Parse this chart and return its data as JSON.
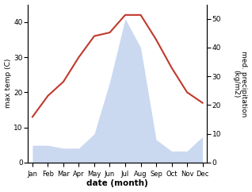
{
  "months": [
    "Jan",
    "Feb",
    "Mar",
    "Apr",
    "May",
    "Jun",
    "Jul",
    "Aug",
    "Sep",
    "Oct",
    "Nov",
    "Dec"
  ],
  "temperature": [
    13,
    19,
    23,
    30,
    36,
    37,
    42,
    42,
    35,
    27,
    20,
    17
  ],
  "precipitation": [
    6,
    6,
    5,
    5,
    10,
    28,
    50,
    40,
    8,
    4,
    4,
    9
  ],
  "temp_color": "#c0392b",
  "precip_color": "#aec6e8",
  "precip_fill_alpha": 0.65,
  "ylim_left": [
    0,
    45
  ],
  "ylim_right": [
    0,
    55
  ],
  "yticks_left": [
    0,
    10,
    20,
    30,
    40
  ],
  "yticks_right": [
    0,
    10,
    20,
    30,
    40,
    50
  ],
  "xlabel": "date (month)",
  "ylabel_left": "max temp (C)",
  "ylabel_right": "med. precipitation\n(kg/m2)",
  "background_color": "#ffffff",
  "figsize": [
    3.18,
    2.42
  ],
  "dpi": 100
}
